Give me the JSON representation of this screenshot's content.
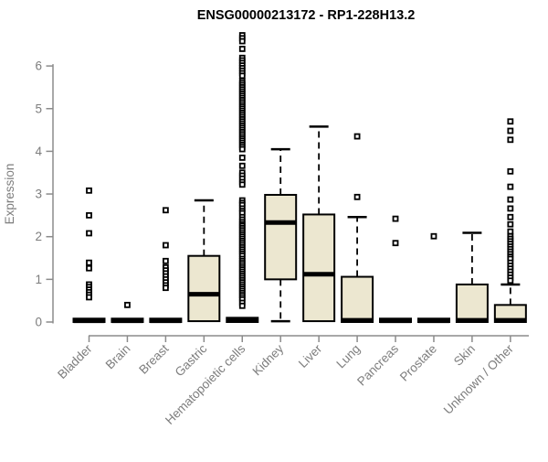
{
  "chart_data": {
    "type": "boxplot",
    "title": "ENSG00000213172 - RP1-228H13.2",
    "ylabel": "Expression",
    "ylim": [
      0,
      6.75
    ],
    "yticks": [
      0,
      1,
      2,
      3,
      4,
      5,
      6
    ],
    "grid": false,
    "legend": "none",
    "box_fill_color": "#ece7d0",
    "axis_color": "#8b8b8b",
    "label_color": "#7d7d7d",
    "categories": [
      "Bladder",
      "Brain",
      "Breast",
      "Gastric",
      "Hematopoietic cells",
      "Kidney",
      "Liver",
      "Lung",
      "Pancreas",
      "Prostate",
      "Skin",
      "Unknown / Other"
    ],
    "series": [
      {
        "name": "Bladder",
        "q1": 0,
        "median": 0.03,
        "q3": 0.08,
        "whisker_low": 0,
        "whisker_high": 0.08,
        "outliers": [
          3.08,
          2.5,
          2.08,
          1.39,
          1.26,
          0.88,
          0.82,
          0.76,
          0.7,
          0.64,
          0.58
        ]
      },
      {
        "name": "Brain",
        "q1": 0,
        "median": 0.03,
        "q3": 0.08,
        "whisker_low": 0,
        "whisker_high": 0.08,
        "outliers": [
          0.4
        ]
      },
      {
        "name": "Breast",
        "q1": 0,
        "median": 0.03,
        "q3": 0.08,
        "whisker_low": 0,
        "whisker_high": 0.08,
        "outliers": [
          2.62,
          1.8,
          1.43,
          1.28,
          1.21,
          1.14,
          1.07,
          1.0,
          0.93,
          0.86,
          0.8
        ]
      },
      {
        "name": "Gastric",
        "q1": 0.02,
        "median": 0.65,
        "q3": 1.55,
        "whisker_low": 0.02,
        "whisker_high": 2.85,
        "outliers": []
      },
      {
        "name": "Hematopoietic cells",
        "q1": 0,
        "median": 0.04,
        "q3": 0.1,
        "whisker_low": 0,
        "whisker_high": 0.1,
        "outliers": [
          6.72,
          6.65,
          6.58,
          6.4,
          6.19,
          6.13,
          6.07,
          6.01,
          5.95,
          5.89,
          5.83,
          5.77,
          5.65,
          5.6,
          5.55,
          5.5,
          5.45,
          5.4,
          5.35,
          5.3,
          5.25,
          5.2,
          5.15,
          5.1,
          5.05,
          5.0,
          4.95,
          4.9,
          4.85,
          4.8,
          4.75,
          4.7,
          4.65,
          4.6,
          4.55,
          4.5,
          4.45,
          4.4,
          4.35,
          4.3,
          4.25,
          4.2,
          4.15,
          4.1,
          4.05,
          3.85,
          3.66,
          3.5,
          3.43,
          3.36,
          3.28,
          3.22,
          2.85,
          2.79,
          2.74,
          2.66,
          2.6,
          2.55,
          2.46,
          2.4,
          2.34,
          2.29,
          2.25,
          2.2,
          2.15,
          2.1,
          2.05,
          2.0,
          1.95,
          1.9,
          1.85,
          1.8,
          1.75,
          1.7,
          1.65,
          1.6,
          1.55,
          1.48,
          1.43,
          1.38,
          1.33,
          1.28,
          1.23,
          1.18,
          1.13,
          1.08,
          1.03,
          0.98,
          0.93,
          0.88,
          0.83,
          0.78,
          0.73,
          0.68,
          0.63,
          0.58,
          0.53,
          0.45,
          0.38
        ]
      },
      {
        "name": "Kidney",
        "q1": 1.0,
        "median": 2.33,
        "q3": 2.98,
        "whisker_low": 0.02,
        "whisker_high": 4.05,
        "outliers": []
      },
      {
        "name": "Liver",
        "q1": 0.02,
        "median": 1.12,
        "q3": 2.52,
        "whisker_low": 0.02,
        "whisker_high": 4.58,
        "outliers": []
      },
      {
        "name": "Lung",
        "q1": 0,
        "median": 0.04,
        "q3": 1.06,
        "whisker_low": 0,
        "whisker_high": 2.46,
        "outliers": [
          4.35,
          2.93
        ]
      },
      {
        "name": "Pancreas",
        "q1": 0,
        "median": 0.03,
        "q3": 0.08,
        "whisker_low": 0,
        "whisker_high": 0.08,
        "outliers": [
          2.42,
          1.85
        ]
      },
      {
        "name": "Prostate",
        "q1": 0,
        "median": 0.03,
        "q3": 0.08,
        "whisker_low": 0,
        "whisker_high": 0.08,
        "outliers": [
          2.01
        ]
      },
      {
        "name": "Skin",
        "q1": 0,
        "median": 0.04,
        "q3": 0.88,
        "whisker_low": 0,
        "whisker_high": 2.09,
        "outliers": []
      },
      {
        "name": "Unknown / Other",
        "q1": 0,
        "median": 0.04,
        "q3": 0.4,
        "whisker_low": 0,
        "whisker_high": 0.88,
        "outliers": [
          4.7,
          4.48,
          4.27,
          3.53,
          3.17,
          2.87,
          2.66,
          2.46,
          2.29,
          2.12,
          2.01,
          1.95,
          1.89,
          1.83,
          1.77,
          1.71,
          1.65,
          1.59,
          1.53,
          1.48,
          1.39,
          1.32,
          1.25,
          1.18,
          1.11,
          1.04,
          0.97
        ]
      }
    ]
  }
}
